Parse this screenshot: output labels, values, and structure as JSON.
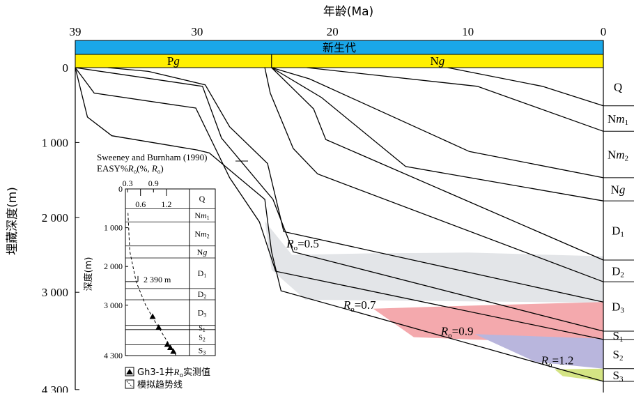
{
  "chart_data": {
    "type": "line",
    "title": "",
    "top_axis": {
      "label": "年龄(Ma)",
      "ticks": [
        "39",
        "30",
        "20",
        "10",
        "0"
      ],
      "tick_values": [
        39,
        30,
        20,
        10,
        0
      ],
      "range": [
        39,
        0
      ]
    },
    "left_axis": {
      "label": "埋藏深度(m)",
      "ticks": [
        "0",
        "1 000",
        "2 000",
        "3 000",
        "4 300"
      ],
      "tick_values": [
        0,
        1000,
        2000,
        3000,
        4300
      ],
      "range": [
        0,
        4300
      ]
    },
    "era_bar": {
      "label": "新生代",
      "color": "#1aa7e8"
    },
    "period_bar": [
      {
        "label_main": "P",
        "label_ital": "g",
        "from": 39,
        "to": 24.5,
        "color": "#ffef00"
      },
      {
        "label_main": "N",
        "label_ital": "g",
        "from": 24.5,
        "to": 0,
        "color": "#ffef00"
      }
    ],
    "strata": [
      {
        "main": "Q",
        "ital": "",
        "sub": ""
      },
      {
        "main": "N",
        "ital": "m",
        "sub": "1"
      },
      {
        "main": "N",
        "ital": "m",
        "sub": "2"
      },
      {
        "main": "N",
        "ital": "g",
        "sub": ""
      },
      {
        "main": "D",
        "ital": "",
        "sub": "1"
      },
      {
        "main": "D",
        "ital": "",
        "sub": "2"
      },
      {
        "main": "D",
        "ital": "",
        "sub": "3"
      },
      {
        "main": "S",
        "ital": "",
        "sub": "1"
      },
      {
        "main": "S",
        "ital": "",
        "sub": "2"
      },
      {
        "main": "S",
        "ital": "",
        "sub": "3"
      }
    ],
    "burial_curves": [
      {
        "points": [
          [
            39,
            0
          ],
          [
            38.1,
            660
          ],
          [
            36.3,
            910
          ],
          [
            30,
            1100
          ],
          [
            29.1,
            1140
          ],
          [
            25,
            1760
          ],
          [
            24.5,
            2460
          ],
          [
            23.8,
            2980
          ],
          [
            0,
            4190
          ]
        ]
      },
      {
        "points": [
          [
            39,
            0
          ],
          [
            37.6,
            340
          ],
          [
            30.1,
            540
          ],
          [
            27.6,
            1470
          ],
          [
            25.4,
            2060
          ],
          [
            24.2,
            2720
          ],
          [
            0,
            3630
          ]
        ]
      },
      {
        "points": [
          [
            39,
            0
          ],
          [
            29.6,
            250
          ],
          [
            28.2,
            940
          ],
          [
            24.4,
            1760
          ],
          [
            22.9,
            2460
          ],
          [
            0,
            3520
          ]
        ]
      },
      {
        "points": [
          [
            36.6,
            0
          ],
          [
            33.6,
            50
          ],
          [
            29.4,
            230
          ],
          [
            27.6,
            790
          ],
          [
            24.8,
            1280
          ],
          [
            23.6,
            2190
          ],
          [
            0,
            3130
          ]
        ]
      },
      {
        "points": [
          [
            25,
            0
          ],
          [
            24.6,
            340
          ],
          [
            22.9,
            1080
          ],
          [
            21.1,
            1420
          ],
          [
            0,
            2860
          ]
        ]
      },
      {
        "points": [
          [
            24.5,
            0
          ],
          [
            21.4,
            550
          ],
          [
            20.5,
            960
          ],
          [
            0,
            2570
          ]
        ]
      },
      {
        "points": [
          [
            24.5,
            0
          ],
          [
            20.8,
            400
          ],
          [
            14.6,
            1320
          ],
          [
            0,
            1780
          ]
        ]
      },
      {
        "points": [
          [
            24.5,
            0
          ],
          [
            21.7,
            150
          ],
          [
            9.9,
            1120
          ],
          [
            0,
            1470
          ]
        ]
      },
      {
        "points": [
          [
            21.9,
            0
          ],
          [
            9.3,
            250
          ],
          [
            0,
            850
          ]
        ]
      },
      {
        "points": [
          [
            11.5,
            0
          ],
          [
            4.5,
            250
          ],
          [
            0,
            510
          ]
        ]
      }
    ],
    "ro_zones": [
      {
        "name": "grey",
        "color": "#e3e5e8",
        "points": [
          [
            25,
            2050
          ],
          [
            23,
            2500
          ],
          [
            17,
            2480
          ],
          [
            10,
            2470
          ],
          [
            0,
            2520
          ],
          [
            0,
            3140
          ],
          [
            22,
            3100
          ],
          [
            24.5,
            2700
          ]
        ]
      },
      {
        "name": "pink",
        "color": "#f4a9ad",
        "points": [
          [
            17,
            3220
          ],
          [
            10,
            3180
          ],
          [
            0,
            3130
          ],
          [
            0,
            3700
          ],
          [
            14,
            3600
          ]
        ]
      },
      {
        "name": "purple",
        "color": "#b9b6dd",
        "points": [
          [
            9.5,
            3560
          ],
          [
            0,
            3620
          ],
          [
            0,
            4020
          ],
          [
            5,
            3930
          ]
        ]
      },
      {
        "name": "green",
        "color": "#d4e484",
        "points": [
          [
            3.6,
            4030
          ],
          [
            0,
            4020
          ],
          [
            0,
            4190
          ],
          [
            3,
            4120
          ]
        ]
      }
    ],
    "ro_labels": [
      {
        "r": "R",
        "sub": "o",
        "value": "=0.5"
      },
      {
        "r": "R",
        "sub": "o",
        "value": "=0.7"
      },
      {
        "r": "R",
        "sub": "o",
        "value": "=0.9"
      },
      {
        "r": "R",
        "sub": "o",
        "value": "=1.2"
      }
    ],
    "inset": {
      "caption_line1": "Sweeney and Burnham (1990)",
      "caption_line2": "EASY%",
      "caption_r": "R",
      "caption_sub": "o",
      "caption_tail": "(%, ",
      "caption_r2": "R",
      "caption_sub2": "o",
      "caption_end": ")",
      "y_label": "深度(m)",
      "ro_ticks_top": [
        "0.3",
        "0.9"
      ],
      "ro_ticks_top_values": [
        0.3,
        0.9
      ],
      "ro_ticks_bottom": [
        "0.6",
        "1.2"
      ],
      "ro_ticks_bottom_values": [
        0.6,
        1.2
      ],
      "depth_ticks": [
        "0",
        "1 000",
        "2 000",
        "3 000",
        "4 300"
      ],
      "depth_tick_values": [
        0,
        1000,
        2000,
        3000,
        4300
      ],
      "annotation": "2 390 m",
      "annotation_depth": 2390,
      "strata": [
        "Q",
        "Nm1",
        "Nm2",
        "Ng",
        "D1",
        "D2",
        "D3",
        "S1",
        "S2",
        "S3"
      ],
      "measured_points": [
        {
          "ro": 0.88,
          "depth": 3300
        },
        {
          "ro": 1.02,
          "depth": 3580
        },
        {
          "ro": 1.22,
          "depth": 4020
        },
        {
          "ro": 1.29,
          "depth": 4100
        },
        {
          "ro": 1.36,
          "depth": 4200
        }
      ],
      "trend_points": [
        [
          0.31,
          620
        ],
        [
          0.35,
          1600
        ],
        [
          0.5,
          2400
        ],
        [
          0.72,
          3000
        ],
        [
          0.95,
          3450
        ],
        [
          1.2,
          3900
        ],
        [
          1.42,
          4290
        ]
      ],
      "legend": [
        {
          "symbol": "triangle",
          "text": "Gh3-1井",
          "r": "R",
          "sub": "o",
          "tail": "实测值"
        },
        {
          "symbol": "trend",
          "text": "模拟趋势线"
        }
      ]
    }
  }
}
